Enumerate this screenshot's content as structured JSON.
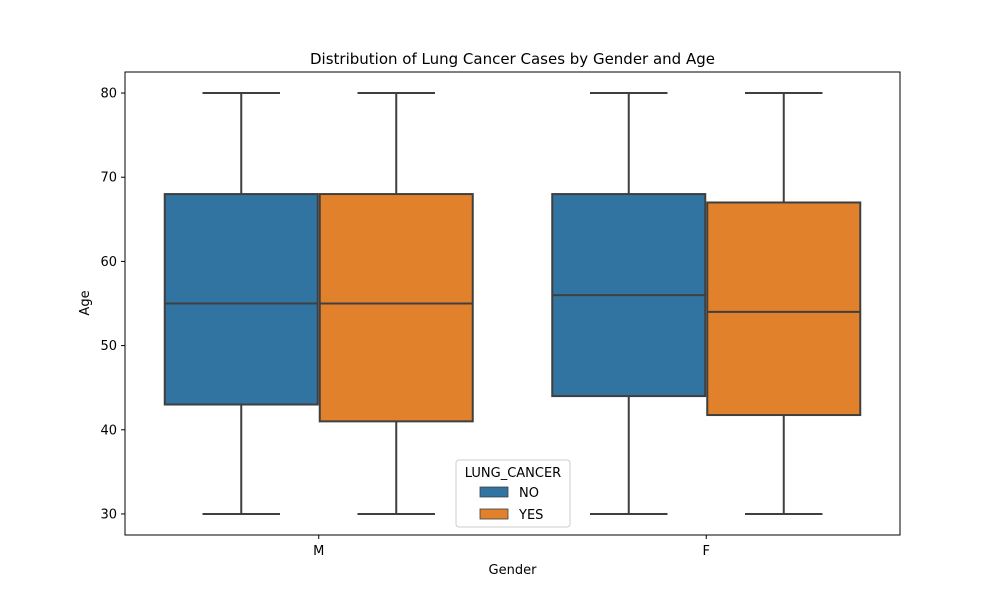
{
  "chart_data": {
    "type": "box",
    "title": "Distribution of Lung Cancer Cases by Gender and Age",
    "xlabel": "Gender",
    "ylabel": "Age",
    "categories": [
      "M",
      "F"
    ],
    "ylim": [
      27.5,
      82.5
    ],
    "yticks": [
      30,
      40,
      50,
      60,
      70,
      80
    ],
    "grid": false,
    "legend": {
      "title": "LUNG_CANCER",
      "placement": "lower-center"
    },
    "series": [
      {
        "name": "NO",
        "color": "#3274a1",
        "boxes": [
          {
            "category": "M",
            "min": 30,
            "q1": 43,
            "median": 55,
            "q3": 68,
            "max": 80
          },
          {
            "category": "F",
            "min": 30,
            "q1": 44,
            "median": 56,
            "q3": 68,
            "max": 80
          }
        ]
      },
      {
        "name": "YES",
        "color": "#e1812c",
        "boxes": [
          {
            "category": "M",
            "min": 30,
            "q1": 41,
            "median": 55,
            "q3": 68,
            "max": 80
          },
          {
            "category": "F",
            "min": 30,
            "q1": 41.75,
            "median": 54,
            "q3": 67,
            "max": 80
          }
        ]
      }
    ]
  }
}
